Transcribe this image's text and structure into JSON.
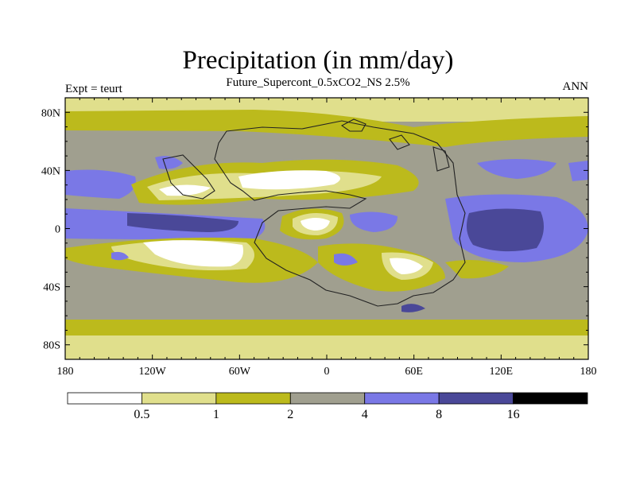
{
  "title": "Precipitation (in mm/day)",
  "subtitle": "Future_Supercont_0.5xCO2_NS 2.5%",
  "left_label": "Expt = teurt",
  "right_label": "ANN",
  "map": {
    "lat_ticks": [
      "80N",
      "40N",
      "0",
      "40S",
      "80S"
    ],
    "lon_ticks": [
      "180",
      "120W",
      "60W",
      "0",
      "60E",
      "120E",
      "180"
    ]
  },
  "colorbar": {
    "levels": [
      "0.5",
      "1",
      "2",
      "4",
      "8",
      "16"
    ],
    "colors": [
      "#ffffff",
      "#e0df8c",
      "#bcba1c",
      "#a09f8f",
      "#7a78e6",
      "#4a4898",
      "#000000"
    ]
  }
}
